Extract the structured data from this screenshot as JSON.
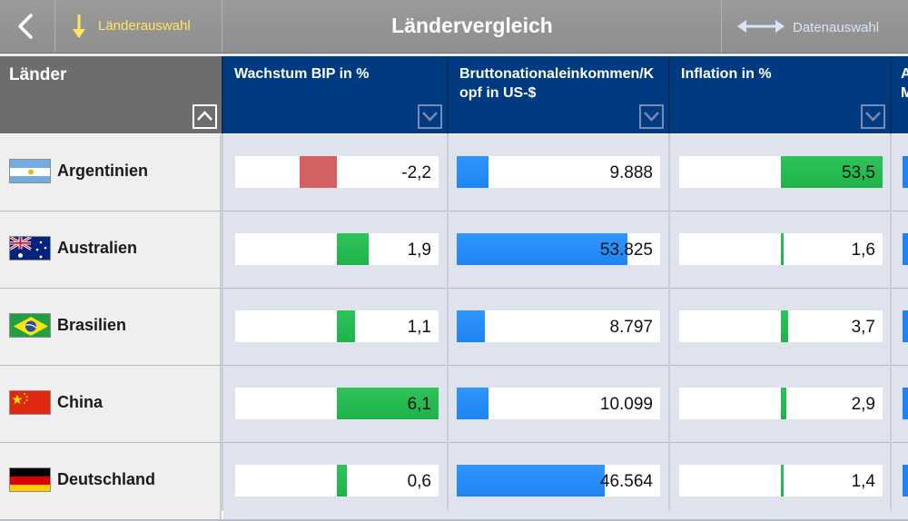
{
  "toolbar": {
    "title": "Ländervergleich",
    "country_select_label": "Länderauswahl",
    "data_select_label": "Datenauswahl"
  },
  "header": {
    "country_column": "Länder",
    "columns": [
      {
        "label": "Wachstum BIP in %"
      },
      {
        "label": "Bruttonationaleinkommen/Kopf in US-$"
      },
      {
        "label": "Inflation in %"
      },
      {
        "label": "A M"
      }
    ]
  },
  "rows": [
    {
      "country": "Argentinien",
      "flag": "flag-argentina",
      "gdp_growth": "-2,2",
      "gni_per_capita": "9.888",
      "inflation": "53,5",
      "gdp_value": -2.2,
      "gni_value": 9888,
      "inflation_value": 53.5
    },
    {
      "country": "Australien",
      "flag": "flag-australia",
      "gdp_growth": "1,9",
      "gni_per_capita": "53.825",
      "inflation": "1,6",
      "gdp_value": 1.9,
      "gni_value": 53825,
      "inflation_value": 1.6
    },
    {
      "country": "Brasilien",
      "flag": "flag-brazil",
      "gdp_growth": "1,1",
      "gni_per_capita": "8.797",
      "inflation": "3,7",
      "gdp_value": 1.1,
      "gni_value": 8797,
      "inflation_value": 3.7
    },
    {
      "country": "China",
      "flag": "flag-china",
      "gdp_growth": "6,1",
      "gni_per_capita": "10.099",
      "inflation": "2,9",
      "gdp_value": 6.1,
      "gni_value": 10099,
      "inflation_value": 2.9
    },
    {
      "country": "Deutschland",
      "flag": "flag-germany",
      "gdp_growth": "0,6",
      "gni_per_capita": "46.564",
      "inflation": "1,4",
      "gdp_value": 0.6,
      "gni_value": 46564,
      "inflation_value": 1.4
    }
  ],
  "scales": {
    "gdp_max": 6.1,
    "gni_max": 64000,
    "inflation_max": 53.5
  },
  "colors": {
    "header_blue": "#003a80",
    "positive_green": "#22b34c",
    "negative_red": "#d46162",
    "bar_blue": "#1d84f2",
    "button_yellow": "#ffe65c"
  }
}
